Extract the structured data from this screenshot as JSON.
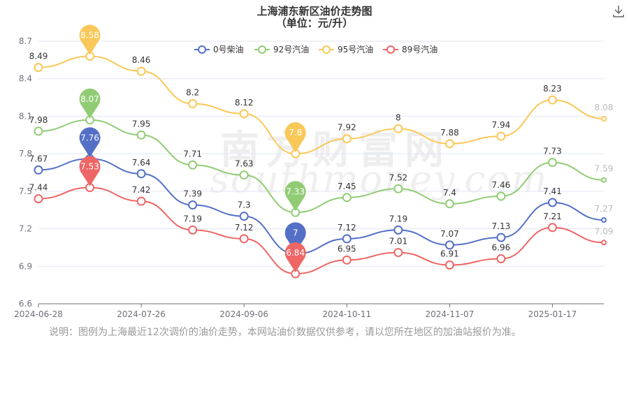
{
  "title": "上海浦东新区油价走势图",
  "subtitle": "（单位：元/升）",
  "note": "说明：图例为上海最近12次调价的油价走势，本网站油价数据仅供参考，请以您所在地区的加油站报价为准。",
  "watermark": "南方财富网",
  "watermark_en": "southmoney.com",
  "icons": {
    "download": "download-icon"
  },
  "chart_data": {
    "type": "line",
    "categories": [
      "2024-06-28",
      "",
      "2024-07-26",
      "",
      "2024-09-06",
      "",
      "2024-10-11",
      "",
      "2024-11-07",
      "",
      "2025-01-17",
      ""
    ],
    "xtick_labels": [
      "2024-06-28",
      "2024-07-26",
      "2024-09-06",
      "2024-10-11",
      "2024-11-07",
      "2025-01-17"
    ],
    "ylim": [
      6.6,
      8.7
    ],
    "yticks": [
      6.6,
      6.9,
      7.2,
      7.5,
      7.8,
      8.1,
      8.4,
      8.7
    ],
    "grid": true,
    "legend_position": "top-center",
    "series": [
      {
        "name": "0号柴油",
        "color": "#5470c6",
        "values": [
          7.67,
          7.76,
          7.64,
          7.39,
          7.3,
          7,
          7.12,
          7.19,
          7.07,
          7.13,
          7.41,
          7.27
        ],
        "max_index": 1,
        "min_index": 5
      },
      {
        "name": "92号汽油",
        "color": "#91cc75",
        "values": [
          7.98,
          8.07,
          7.95,
          7.71,
          7.63,
          7.33,
          7.45,
          7.52,
          7.4,
          7.46,
          7.73,
          7.59
        ],
        "max_index": 1,
        "min_index": 5
      },
      {
        "name": "95号汽油",
        "color": "#fac858",
        "values": [
          8.49,
          8.58,
          8.46,
          8.2,
          8.12,
          7.8,
          7.92,
          8,
          7.88,
          7.94,
          8.23,
          8.08
        ],
        "max_index": 1,
        "min_index": 5
      },
      {
        "name": "89号汽油",
        "color": "#ee6666",
        "values": [
          7.44,
          7.53,
          7.42,
          7.19,
          7.12,
          6.84,
          6.95,
          7.01,
          6.91,
          6.96,
          7.21,
          7.09
        ],
        "max_index": 1,
        "min_index": 5
      }
    ]
  }
}
